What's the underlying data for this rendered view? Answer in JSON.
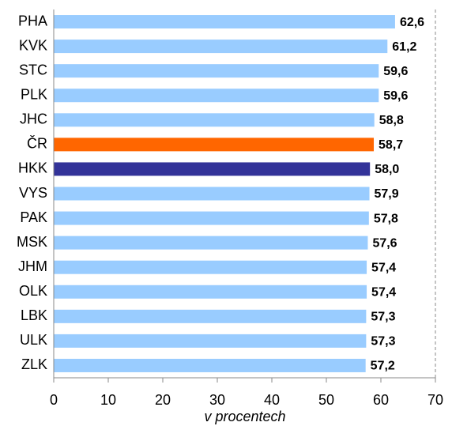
{
  "chart_data": {
    "type": "barh",
    "x_label": "v procentech",
    "categories": [
      "PHA",
      "KVK",
      "STC",
      "PLK",
      "JHC",
      "ČR",
      "HKK",
      "VYS",
      "PAK",
      "MSK",
      "JHM",
      "OLK",
      "LBK",
      "ULK",
      "ZLK"
    ],
    "values": [
      62.6,
      61.2,
      59.6,
      59.6,
      58.8,
      58.7,
      58.0,
      57.9,
      57.8,
      57.6,
      57.4,
      57.4,
      57.3,
      57.3,
      57.2
    ],
    "value_labels": [
      "62,6",
      "61,2",
      "59,6",
      "59,6",
      "58,8",
      "58,7",
      "58,0",
      "57,9",
      "57,8",
      "57,6",
      "57,4",
      "57,4",
      "57,3",
      "57,3",
      "57,2"
    ],
    "colors": [
      "#99ccff",
      "#99ccff",
      "#99ccff",
      "#99ccff",
      "#99ccff",
      "#ff6600",
      "#333399",
      "#99ccff",
      "#99ccff",
      "#99ccff",
      "#99ccff",
      "#99ccff",
      "#99ccff",
      "#99ccff",
      "#99ccff"
    ],
    "label_colors": [
      "#17375e",
      "#17375e",
      "#17375e",
      "#17375e",
      "#17375e",
      "#ff6600",
      "#17375e",
      "#17375e",
      "#17375e",
      "#17375e",
      "#17375e",
      "#17375e",
      "#17375e",
      "#17375e",
      "#17375e"
    ],
    "xlim": [
      0,
      70
    ],
    "xticks": [
      0,
      10,
      20,
      30,
      40,
      50,
      60,
      70
    ],
    "grid": false
  }
}
